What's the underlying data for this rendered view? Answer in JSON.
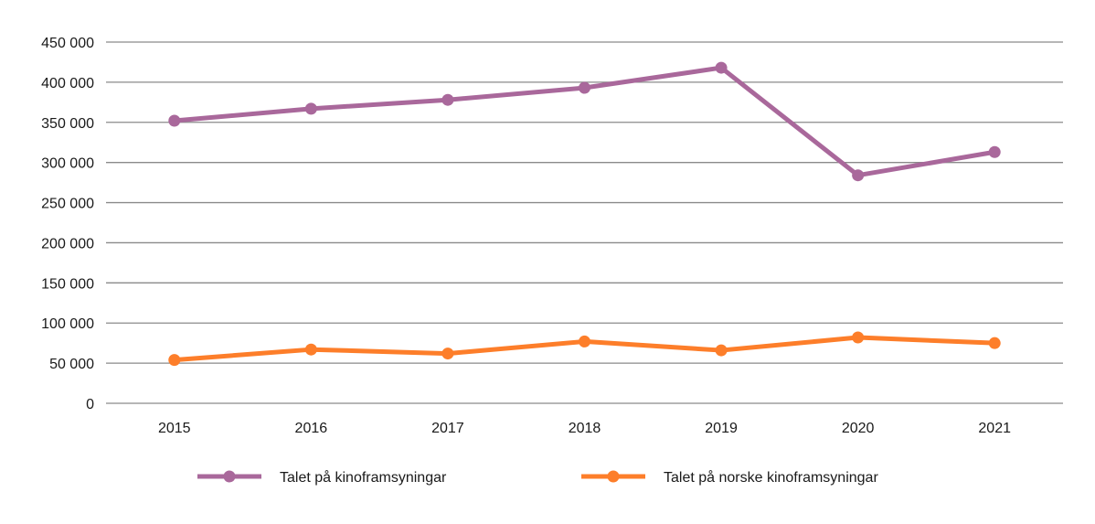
{
  "chart_data": {
    "type": "line",
    "title": "",
    "xlabel": "",
    "ylabel": "",
    "categories": [
      "2015",
      "2016",
      "2017",
      "2018",
      "2019",
      "2020",
      "2021"
    ],
    "ylim": [
      0,
      450000
    ],
    "yticks": [
      0,
      50000,
      100000,
      150000,
      200000,
      250000,
      300000,
      350000,
      400000,
      450000
    ],
    "ytick_labels": [
      "0",
      "50 000",
      "100 000",
      "150 000",
      "200 000",
      "250 000",
      "300 000",
      "350 000",
      "400 000",
      "450 000"
    ],
    "grid": true,
    "legend_position": "bottom",
    "series": [
      {
        "name": "Talet på kinoframsyningar",
        "color": "#a9689b",
        "values": [
          352000,
          367000,
          378000,
          393000,
          418000,
          284000,
          313000
        ]
      },
      {
        "name": "Talet på norske kinoframsyningar",
        "color": "#fd7e2a",
        "values": [
          54000,
          67000,
          62000,
          77000,
          66000,
          82000,
          75000
        ]
      }
    ]
  }
}
